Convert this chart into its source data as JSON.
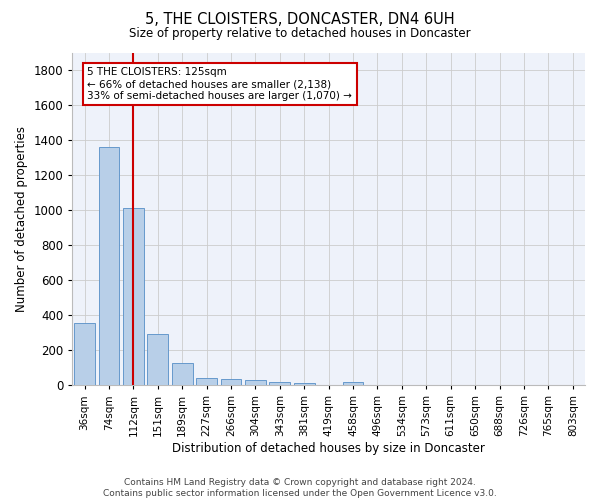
{
  "title": "5, THE CLOISTERS, DONCASTER, DN4 6UH",
  "subtitle": "Size of property relative to detached houses in Doncaster",
  "xlabel": "Distribution of detached houses by size in Doncaster",
  "ylabel": "Number of detached properties",
  "footer_line1": "Contains HM Land Registry data © Crown copyright and database right 2024.",
  "footer_line2": "Contains public sector information licensed under the Open Government Licence v3.0.",
  "bar_labels": [
    "36sqm",
    "74sqm",
    "112sqm",
    "151sqm",
    "189sqm",
    "227sqm",
    "266sqm",
    "304sqm",
    "343sqm",
    "381sqm",
    "419sqm",
    "458sqm",
    "496sqm",
    "534sqm",
    "573sqm",
    "611sqm",
    "650sqm",
    "688sqm",
    "726sqm",
    "765sqm",
    "803sqm"
  ],
  "bar_values": [
    355,
    1360,
    1010,
    290,
    125,
    42,
    35,
    28,
    20,
    15,
    0,
    20,
    0,
    0,
    0,
    0,
    0,
    0,
    0,
    0,
    0
  ],
  "bar_color": "#b8cfe8",
  "bar_edge_color": "#6699cc",
  "ylim": [
    0,
    1900
  ],
  "yticks": [
    0,
    200,
    400,
    600,
    800,
    1000,
    1200,
    1400,
    1600,
    1800
  ],
  "vline_color": "#cc0000",
  "annotation_line1": "5 THE CLOISTERS: 125sqm",
  "annotation_line2": "← 66% of detached houses are smaller (2,138)",
  "annotation_line3": "33% of semi-detached houses are larger (1,070) →",
  "box_color": "#cc0000",
  "plot_bg_color": "#eef2fa",
  "grid_color": "#cccccc"
}
